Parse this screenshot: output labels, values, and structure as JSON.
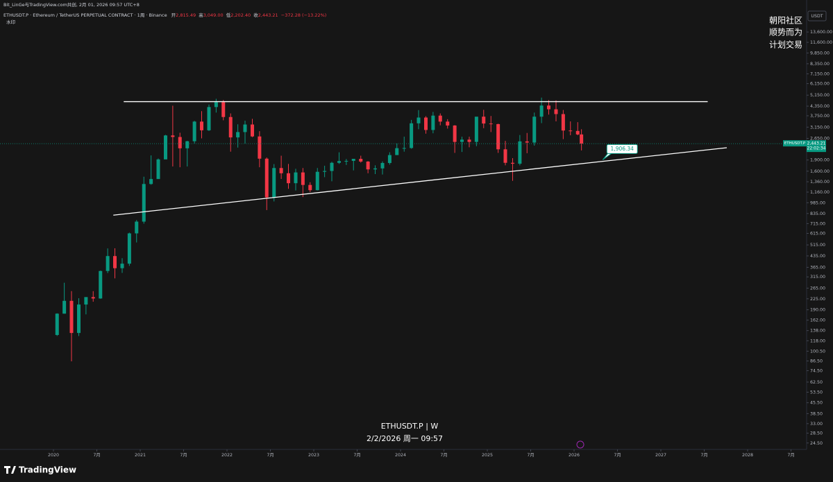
{
  "header": {
    "credit": "Bit_LinGe与TradingView.com共创, 2月 01, 2026 09:57 UTC+8",
    "symbol": "ETHUSDT.P · Ethereum / TetherUS PERPETUAL CONTRACT · 1周 · Binance",
    "open_label": "开",
    "open": "2,815.49",
    "high_label": "高",
    "high": "3,049.00",
    "low_label": "低",
    "low": "2,202.40",
    "close_label": "收",
    "close": "2,443.21",
    "change": "−372.28 (−13.22%)",
    "watermark_tag": "水印"
  },
  "watermark": [
    "朝阳社区",
    "顺势而为",
    "计划交易"
  ],
  "footer": {
    "symbol_interval": "ETHUSDT.P | W",
    "datetime": "2/2/2026 周一 09:57",
    "brand": "TradingView"
  },
  "chart_data": {
    "type": "candlestick",
    "currency": "USDT",
    "log_scale": true,
    "grid": false,
    "up_color": "#089981",
    "down_color": "#f23645",
    "x": [
      2020.042,
      2020.125,
      2020.208,
      2020.292,
      2020.375,
      2020.458,
      2020.542,
      2020.625,
      2020.708,
      2020.792,
      2020.875,
      2020.958,
      2021.042,
      2021.125,
      2021.208,
      2021.292,
      2021.375,
      2021.458,
      2021.542,
      2021.625,
      2021.708,
      2021.792,
      2021.875,
      2021.958,
      2022.042,
      2022.125,
      2022.208,
      2022.292,
      2022.375,
      2022.458,
      2022.542,
      2022.625,
      2022.708,
      2022.792,
      2022.875,
      2022.958,
      2023.042,
      2023.125,
      2023.208,
      2023.292,
      2023.375,
      2023.458,
      2023.542,
      2023.625,
      2023.708,
      2023.792,
      2023.875,
      2023.958,
      2024.042,
      2024.125,
      2024.208,
      2024.292,
      2024.375,
      2024.458,
      2024.542,
      2024.625,
      2024.708,
      2024.792,
      2024.875,
      2024.958,
      2025.042,
      2025.125,
      2025.208,
      2025.292,
      2025.375,
      2025.458,
      2025.542,
      2025.625,
      2025.708,
      2025.792,
      2025.875,
      2025.958,
      2026.042,
      2026.085
    ],
    "ohlc": [
      [
        129,
        180,
        127,
        179
      ],
      [
        179,
        288,
        179,
        218
      ],
      [
        218,
        253,
        86,
        133
      ],
      [
        133,
        227,
        127,
        206
      ],
      [
        206,
        228,
        177,
        231
      ],
      [
        231,
        253,
        215,
        226
      ],
      [
        226,
        347,
        225,
        345
      ],
      [
        345,
        488,
        334,
        434
      ],
      [
        434,
        489,
        308,
        360
      ],
      [
        360,
        420,
        335,
        386
      ],
      [
        386,
        622,
        373,
        615
      ],
      [
        615,
        755,
        535,
        737
      ],
      [
        737,
        1470,
        714,
        1314
      ],
      [
        1314,
        2040,
        1300,
        1418
      ],
      [
        1418,
        1945,
        1420,
        1918
      ],
      [
        1918,
        2795,
        1930,
        2773
      ],
      [
        2773,
        4380,
        1720,
        2707
      ],
      [
        2707,
        2890,
        1700,
        2275
      ],
      [
        2275,
        2550,
        1720,
        2536
      ],
      [
        2536,
        3470,
        2450,
        3430
      ],
      [
        3430,
        4030,
        2650,
        3000
      ],
      [
        3000,
        4460,
        2970,
        4290
      ],
      [
        4290,
        4870,
        3940,
        4630
      ],
      [
        4630,
        4780,
        3500,
        3680
      ],
      [
        3680,
        3890,
        2160,
        2690
      ],
      [
        2690,
        3290,
        2300,
        2920
      ],
      [
        2920,
        3480,
        2450,
        3280
      ],
      [
        3280,
        3580,
        2700,
        2730
      ],
      [
        2730,
        2960,
        1700,
        1940
      ],
      [
        1940,
        1975,
        880,
        1070
      ],
      [
        1070,
        1785,
        1005,
        1680
      ],
      [
        1680,
        2030,
        1420,
        1550
      ],
      [
        1550,
        1790,
        1220,
        1330
      ],
      [
        1330,
        1660,
        1190,
        1570
      ],
      [
        1570,
        1680,
        1075,
        1295
      ],
      [
        1295,
        1350,
        1160,
        1195
      ],
      [
        1195,
        1680,
        1190,
        1585
      ],
      [
        1585,
        1740,
        1460,
        1605
      ],
      [
        1605,
        1850,
        1370,
        1820
      ],
      [
        1820,
        2140,
        1790,
        1870
      ],
      [
        1870,
        1930,
        1760,
        1875
      ],
      [
        1875,
        1930,
        1620,
        1935
      ],
      [
        1935,
        2030,
        1825,
        1855
      ],
      [
        1855,
        1870,
        1550,
        1645
      ],
      [
        1645,
        1750,
        1530,
        1670
      ],
      [
        1670,
        1860,
        1520,
        1815
      ],
      [
        1815,
        2140,
        1770,
        2050
      ],
      [
        2050,
        2450,
        2050,
        2280
      ],
      [
        2280,
        2720,
        2160,
        2285
      ],
      [
        2285,
        3520,
        2260,
        3340
      ],
      [
        3340,
        4095,
        3050,
        3650
      ],
      [
        3650,
        3730,
        2850,
        3015
      ],
      [
        3015,
        3980,
        2865,
        3760
      ],
      [
        3760,
        3890,
        3240,
        3430
      ],
      [
        3430,
        3560,
        3080,
        3230
      ],
      [
        3230,
        3250,
        2120,
        2510
      ],
      [
        2510,
        2720,
        2150,
        2600
      ],
      [
        2600,
        2720,
        2310,
        2510
      ],
      [
        2510,
        3680,
        2350,
        3700
      ],
      [
        3700,
        4110,
        3100,
        3330
      ],
      [
        3330,
        3740,
        2920,
        3300
      ],
      [
        3300,
        3320,
        2120,
        2240
      ],
      [
        2240,
        2550,
        1750,
        1820
      ],
      [
        1820,
        1955,
        1380,
        1795
      ],
      [
        1795,
        2790,
        1750,
        2530
      ],
      [
        2530,
        2880,
        2110,
        2485
      ],
      [
        2485,
        3940,
        2370,
        3700
      ],
      [
        3700,
        4960,
        3350,
        4390
      ],
      [
        4390,
        4770,
        3820,
        4145
      ],
      [
        4145,
        4750,
        3440,
        3850
      ],
      [
        3850,
        4100,
        2620,
        2990
      ],
      [
        2990,
        3440,
        2780,
        2970
      ],
      [
        2970,
        3400,
        2780,
        2815.49
      ],
      [
        2815.49,
        3049,
        2202.4,
        2443.21
      ]
    ],
    "lines": [
      {
        "x": [
          2020.81,
          2027.54
        ],
        "y": [
          4662,
          4662
        ],
        "color": "#ffffff"
      },
      {
        "x": [
          2020.69,
          2027.76
        ],
        "y": [
          814,
          2296
        ],
        "color": "#ffffff"
      }
    ],
    "trend_label": {
      "x": 2026.33,
      "value": 1906.34,
      "label": "1,906.34"
    },
    "last_price": {
      "symbol": "ETHUSDT.P",
      "value": 2443.21,
      "label": "2,443.21",
      "countdown": "22:02:34"
    },
    "xlim": [
      2019.384,
      2028.68
    ],
    "xticks": [
      2020,
      {
        "value": 2020.5,
        "label": "7月"
      },
      2021,
      {
        "value": 2021.5,
        "label": "7月"
      },
      2022,
      {
        "value": 2022.5,
        "label": "7月"
      },
      2023,
      {
        "value": 2023.5,
        "label": "7月"
      },
      2024,
      {
        "value": 2024.5,
        "label": "7月"
      },
      2025,
      {
        "value": 2025.5,
        "label": "7月"
      },
      2026,
      {
        "value": 2026.5,
        "label": "7月"
      },
      2027,
      {
        "value": 2027.5,
        "label": "7月"
      },
      2028,
      {
        "value": 2028.5,
        "label": "7月"
      }
    ],
    "ylim": [
      22.2,
      19160
    ],
    "yticks": [
      {
        "value": 13600,
        "label": "13,600.00"
      },
      {
        "value": 11600,
        "label": "11,600.00"
      },
      {
        "value": 9850,
        "label": "9,850.00"
      },
      {
        "value": 8350,
        "label": "8,350.00"
      },
      {
        "value": 7150,
        "label": "7,150.00"
      },
      {
        "value": 6150,
        "label": "6,150.00"
      },
      {
        "value": 5150,
        "label": "5,150.00"
      },
      {
        "value": 4350,
        "label": "4,350.00"
      },
      {
        "value": 3750,
        "label": "3,750.00"
      },
      {
        "value": 3150,
        "label": "3,150.00"
      },
      {
        "value": 2650,
        "label": "2,650.00"
      },
      {
        "value": 1900,
        "label": "1,900.00"
      },
      {
        "value": 1600,
        "label": "1,600.00"
      },
      {
        "value": 1360,
        "label": "1,360.00"
      },
      {
        "value": 1160,
        "label": "1,160.00"
      },
      {
        "value": 985,
        "label": "985.00"
      },
      {
        "value": 835,
        "label": "835.00"
      },
      {
        "value": 715,
        "label": "715.00"
      },
      {
        "value": 615,
        "label": "615.00"
      },
      {
        "value": 515,
        "label": "515.00"
      },
      {
        "value": 435,
        "label": "435.00"
      },
      {
        "value": 365,
        "label": "365.00"
      },
      {
        "value": 315,
        "label": "315.00"
      },
      {
        "value": 265,
        "label": "265.00"
      },
      {
        "value": 225,
        "label": "225.00"
      },
      {
        "value": 190,
        "label": "190.00"
      },
      {
        "value": 162,
        "label": "162.00"
      },
      {
        "value": 138,
        "label": "138.00"
      },
      {
        "value": 118,
        "label": "118.00"
      },
      {
        "value": 100.5,
        "label": "100.50"
      },
      {
        "value": 86.5,
        "label": "86.50"
      },
      {
        "value": 74.5,
        "label": "74.50"
      },
      {
        "value": 62.5,
        "label": "62.50"
      },
      {
        "value": 53.5,
        "label": "53.50"
      },
      {
        "value": 45.5,
        "label": "45.50"
      },
      {
        "value": 38.5,
        "label": "38.50"
      },
      {
        "value": 33,
        "label": "33.00"
      },
      {
        "value": 28.5,
        "label": "28.50"
      },
      {
        "value": 24.5,
        "label": "24.50"
      }
    ]
  }
}
